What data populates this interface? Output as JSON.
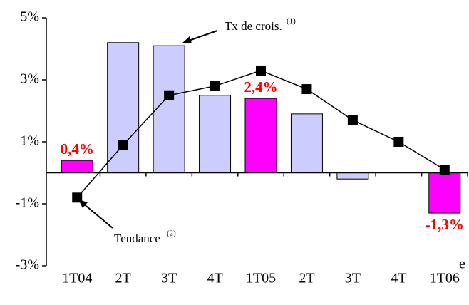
{
  "chart_data": {
    "type": "bar",
    "categories": [
      "1T04",
      "2T",
      "3T",
      "4T",
      "1T05",
      "2T",
      "3T",
      "4T",
      "1T06"
    ],
    "series": [
      {
        "type": "bar",
        "colors": [
          "#ff00ff",
          "#ccccff",
          "#ccccff",
          "#ccccff",
          "#ff00ff",
          "#ccccff",
          "#ccccff",
          "#ccccff",
          "#ff00ff"
        ],
        "values": [
          0.4,
          4.2,
          4.1,
          2.5,
          2.4,
          1.9,
          -0.2,
          null,
          -1.3
        ],
        "value_labels": [
          "0,4%",
          null,
          null,
          null,
          "2,4%",
          null,
          null,
          null,
          "-1,3%"
        ]
      },
      {
        "type": "line",
        "color": "#000000",
        "values": [
          -0.8,
          0.9,
          2.5,
          2.8,
          3.3,
          2.7,
          1.7,
          1.0,
          0.1
        ]
      }
    ],
    "ylim": [
      -3,
      5
    ],
    "yticks": [
      {
        "value": 5,
        "label": "5%"
      },
      {
        "value": 3,
        "label": "3%"
      },
      {
        "value": 1,
        "label": "1%"
      },
      {
        "value": -1,
        "label": "-1%"
      },
      {
        "value": -3,
        "label": "-3%"
      }
    ],
    "annotations": {
      "growth": "Tx de crois.",
      "growth_note": "(1)",
      "trend": "Tendance",
      "trend_note": "(2)",
      "estimate": "e"
    }
  }
}
